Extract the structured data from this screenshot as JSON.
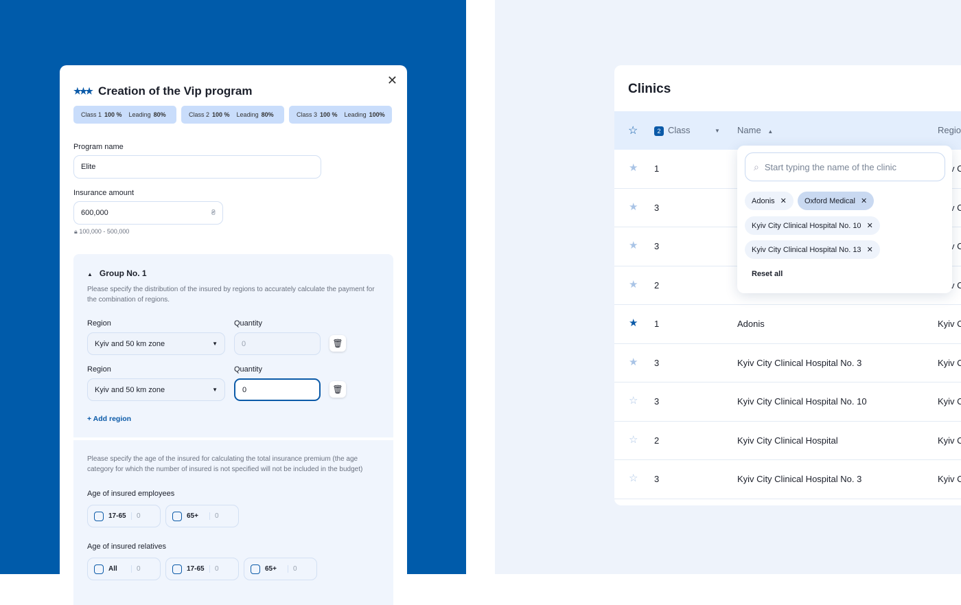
{
  "modal": {
    "title": "Creation of the Vip program",
    "icon": "stars-icon",
    "classes": [
      {
        "class_label": "Class 1",
        "class_value": "100 %",
        "leading_label": "Leading",
        "leading_value": "80%"
      },
      {
        "class_label": "Class 2",
        "class_value": "100 %",
        "leading_label": "Leading",
        "leading_value": "80%"
      },
      {
        "class_label": "Class 3",
        "class_value": "100 %",
        "leading_label": "Leading",
        "leading_value": "100%"
      }
    ],
    "program_name_label": "Program name",
    "program_name_value": "Elite",
    "insurance_amount_label": "Insurance amount",
    "insurance_amount_value": "600,000",
    "currency": "₴",
    "insurance_range": "100,000 - 500,000",
    "group": {
      "title": "Group No. 1",
      "description": "Please specify the distribution of the insured by regions to accurately calculate the payment for the combination of regions.",
      "regions": [
        {
          "region_label": "Region",
          "region_value": "Kyiv and 50 km zone",
          "quantity_label": "Quantity",
          "quantity_placeholder": "0"
        },
        {
          "region_label": "Region",
          "region_value": "Kyiv and 50 km zone",
          "quantity_label": "Quantity",
          "quantity_value": "0"
        }
      ],
      "add_region": "+ Add region"
    },
    "age": {
      "description": "Please specify the age of the insured for calculating the total insurance premium (the age category for which the number of insured is not specified will not be included in the budget)",
      "employees_label": "Age of insured employees",
      "employees": [
        {
          "label": "17-65",
          "value": "0"
        },
        {
          "label": "65+",
          "value": "0"
        }
      ],
      "relatives_label": "Age of insured relatives",
      "relatives": [
        {
          "label": "All",
          "value": "0"
        },
        {
          "label": "17-65",
          "value": "0"
        },
        {
          "label": "65+",
          "value": "0"
        }
      ]
    }
  },
  "clinics": {
    "title": "Clinics",
    "headers": {
      "class": "Class",
      "class_filter_count": "2",
      "name": "Name",
      "region": "Regio"
    },
    "rows": [
      {
        "star": "light",
        "class": "1",
        "name": "",
        "region": "Kyiv C"
      },
      {
        "star": "light",
        "class": "3",
        "name": "",
        "region": "Kyiv C"
      },
      {
        "star": "light",
        "class": "3",
        "name": "",
        "region": "Kyiv C"
      },
      {
        "star": "light",
        "class": "2",
        "name": "",
        "region": "Kyiv C"
      },
      {
        "star": "filled",
        "class": "1",
        "name": "Adonis",
        "region": "Kyiv C"
      },
      {
        "star": "light",
        "class": "3",
        "name": "Kyiv City Clinical Hospital No. 3",
        "region": "Kyiv C"
      },
      {
        "star": "outline",
        "class": "3",
        "name": "Kyiv City Clinical Hospital No. 10",
        "region": "Kyiv C"
      },
      {
        "star": "outline",
        "class": "2",
        "name": "Kyiv City Clinical Hospital",
        "region": "Kyiv C"
      },
      {
        "star": "outline",
        "class": "3",
        "name": "Kyiv City Clinical Hospital No. 3",
        "region": "Kyiv C"
      }
    ],
    "filter": {
      "placeholder": "Start typing the name of the clinic",
      "tags": [
        "Adonis",
        "Oxford Medical",
        "Kyiv City Clinical Hospital No. 10",
        "Kyiv City Clinical Hospital No. 13"
      ],
      "reset": "Reset all"
    }
  },
  "colors": {
    "brand": "#005BAA",
    "accent": "#0B5AA8",
    "panel": "#F0F5FD"
  }
}
